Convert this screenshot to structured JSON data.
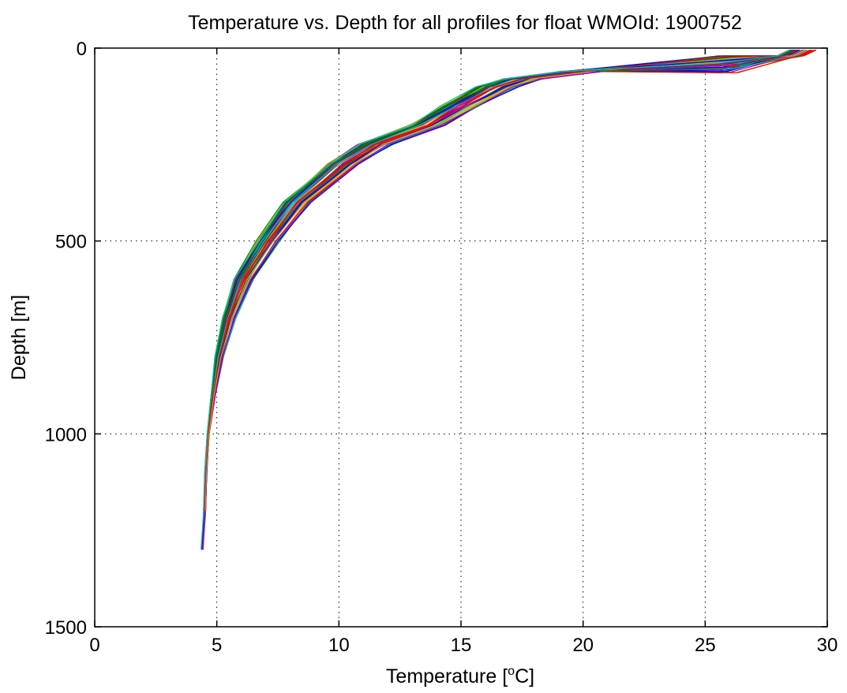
{
  "chart_data": {
    "type": "line",
    "title": "Temperature vs. Depth for all profiles for float WMOId: 1900752",
    "xlabel": {
      "prefix": "Temperature [",
      "sup": "o",
      "suffix": "C]"
    },
    "ylabel": "Depth [m]",
    "xlim": [
      0,
      30
    ],
    "ylim": [
      0,
      1500
    ],
    "y_reversed": true,
    "grid": true,
    "grid_style": "dotted",
    "xticks": [
      0,
      5,
      10,
      15,
      20,
      25,
      30
    ],
    "yticks": [
      0,
      500,
      1000,
      1500
    ],
    "xtick_labels": [
      "0",
      "5",
      "10",
      "15",
      "20",
      "25",
      "30"
    ],
    "ytick_labels": [
      "0",
      "500",
      "1000",
      "1500"
    ],
    "profile_count": 60,
    "series_colors": [
      "#0000ff",
      "#008000",
      "#ff0000",
      "#00bfbf",
      "#bf00bf",
      "#bfbf00",
      "#404040"
    ],
    "representative_profile": {
      "depth": [
        5,
        20,
        40,
        60,
        80,
        100,
        150,
        200,
        250,
        300,
        400,
        500,
        600,
        700,
        800,
        900,
        1000,
        1100,
        1200,
        1300
      ],
      "temperature": [
        29.0,
        28.5,
        26.0,
        20.0,
        17.5,
        16.5,
        15.0,
        13.6,
        11.5,
        10.2,
        8.3,
        7.1,
        6.1,
        5.5,
        5.1,
        4.85,
        4.65,
        4.55,
        4.5,
        4.4
      ]
    }
  }
}
